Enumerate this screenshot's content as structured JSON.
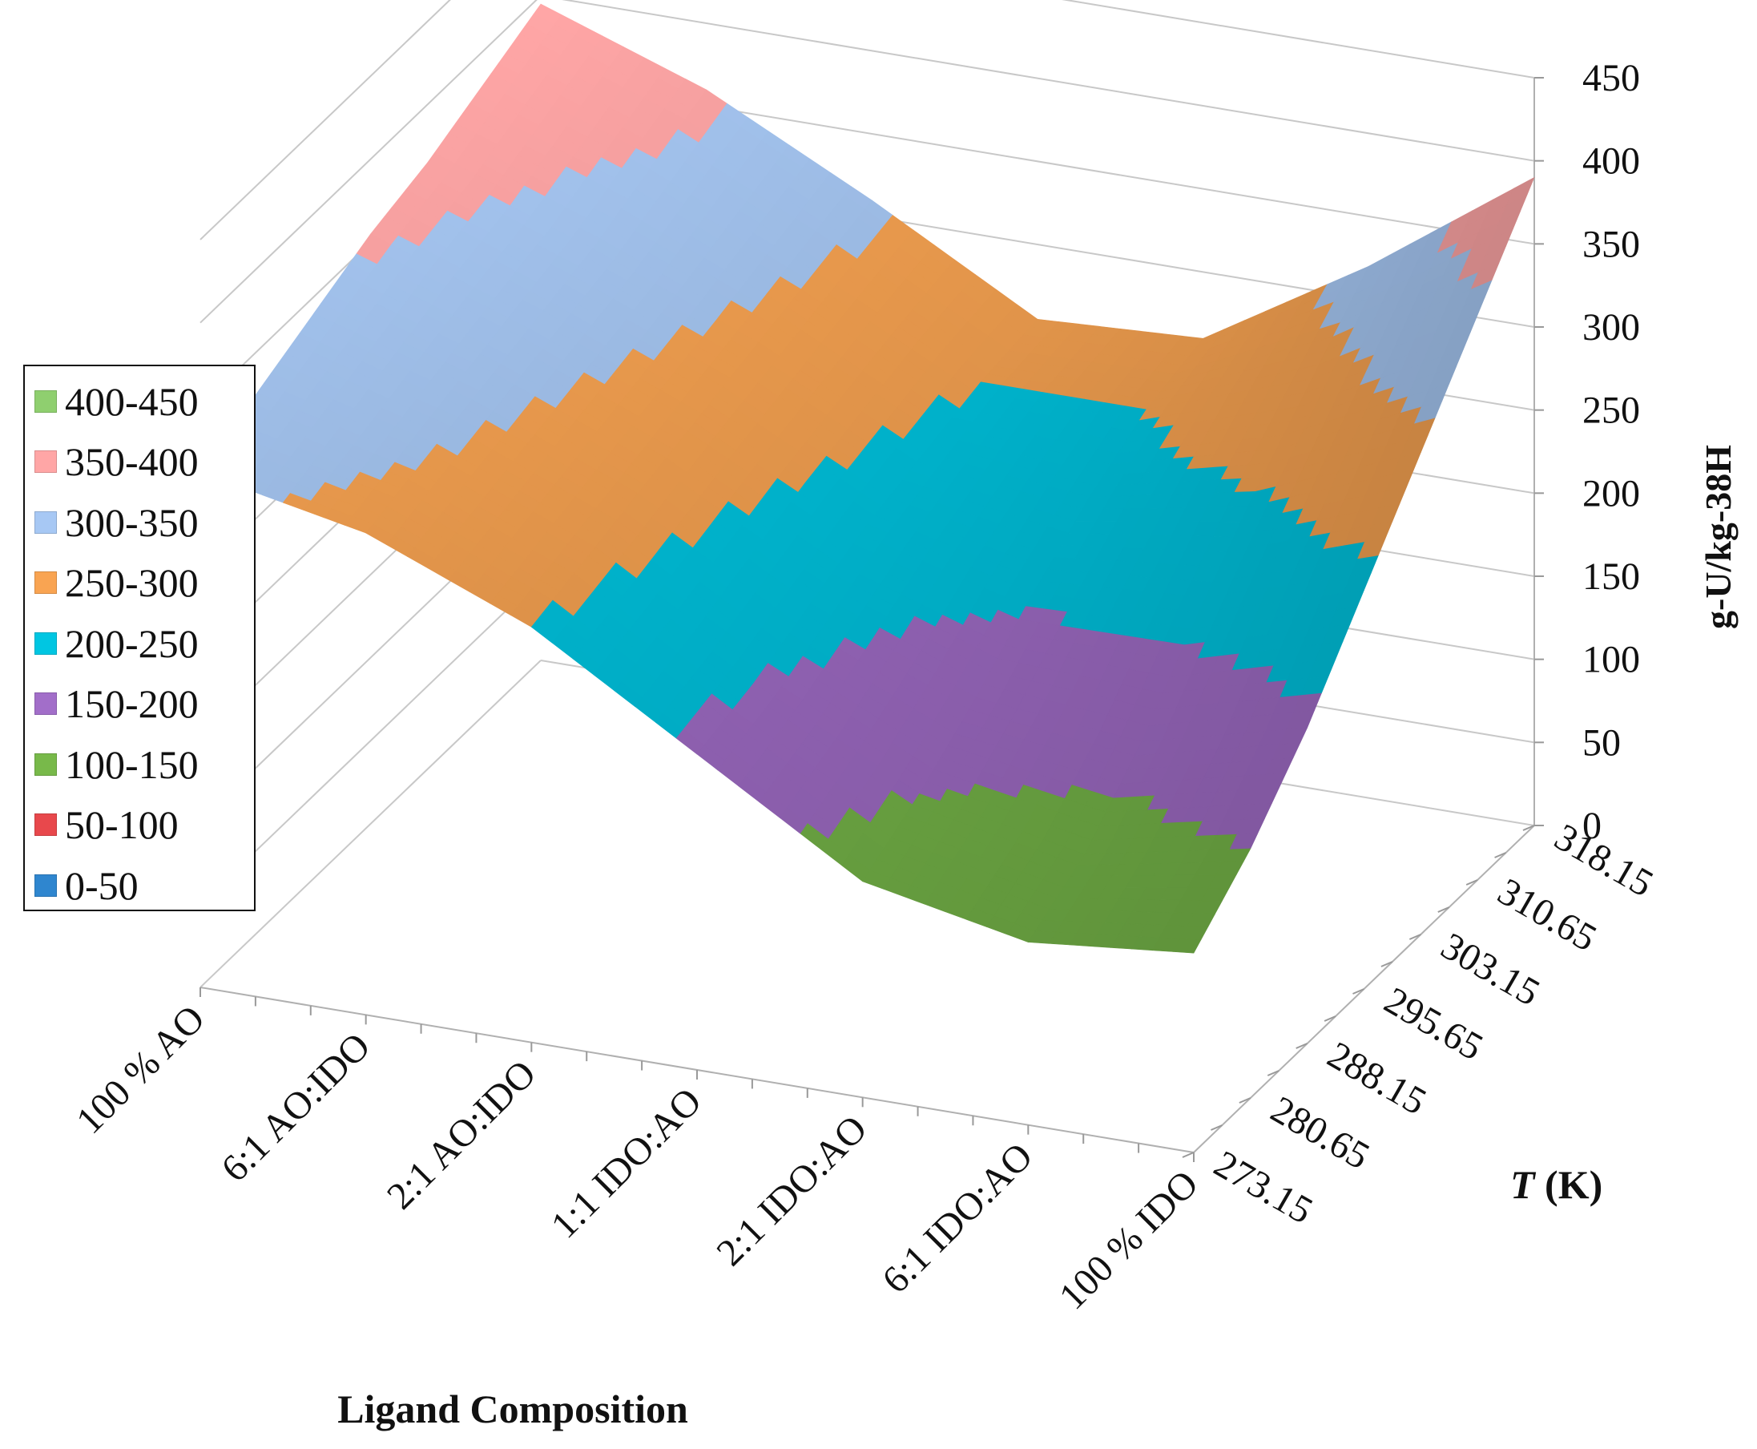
{
  "chart_data": {
    "type": "surface3d",
    "title": "",
    "x_axis": {
      "label": "Ligand Composition",
      "categories": [
        "100 % AO",
        "6:1 AO:IDO",
        "2:1 AO:IDO",
        "1:1 IDO:AO",
        "2:1 IDO:AO",
        "6:1 IDO:AO",
        "100 % IDO"
      ]
    },
    "y_axis": {
      "label_italic": "T",
      "label_rest": " (K)",
      "categories": [
        "273.15",
        "280.65",
        "288.15",
        "295.65",
        "303.15",
        "310.65",
        "318.15"
      ]
    },
    "z_axis": {
      "label": "g-U/kg-38H",
      "min": 0,
      "max": 450,
      "ticks": [
        "0",
        "50",
        "100",
        "150",
        "200",
        "250",
        "300",
        "350",
        "400",
        "450"
      ]
    },
    "z_values_by_temperature": [
      [
        310,
        290,
        250,
        190,
        130,
        110,
        120
      ],
      [
        325,
        300,
        260,
        200,
        150,
        130,
        150
      ],
      [
        340,
        310,
        270,
        215,
        175,
        165,
        190
      ],
      [
        355,
        320,
        280,
        230,
        205,
        210,
        240
      ],
      [
        365,
        330,
        290,
        240,
        230,
        250,
        290
      ],
      [
        380,
        345,
        300,
        250,
        250,
        285,
        340
      ],
      [
        395,
        360,
        310,
        255,
        260,
        320,
        390
      ]
    ],
    "legend": {
      "position": "left",
      "items": [
        {
          "label": "400-450",
          "color": "#8fcf6f"
        },
        {
          "label": "350-400",
          "color": "#ffa6a6"
        },
        {
          "label": "300-350",
          "color": "#a7c8f4"
        },
        {
          "label": "250-300",
          "color": "#f9a452"
        },
        {
          "label": "200-250",
          "color": "#00c6e2"
        },
        {
          "label": "150-200",
          "color": "#a26ec9"
        },
        {
          "label": "100-150",
          "color": "#78b94a"
        },
        {
          "label": "50-100",
          "color": "#e8484c"
        },
        {
          "label": "0-50",
          "color": "#2f86cf"
        }
      ]
    }
  }
}
